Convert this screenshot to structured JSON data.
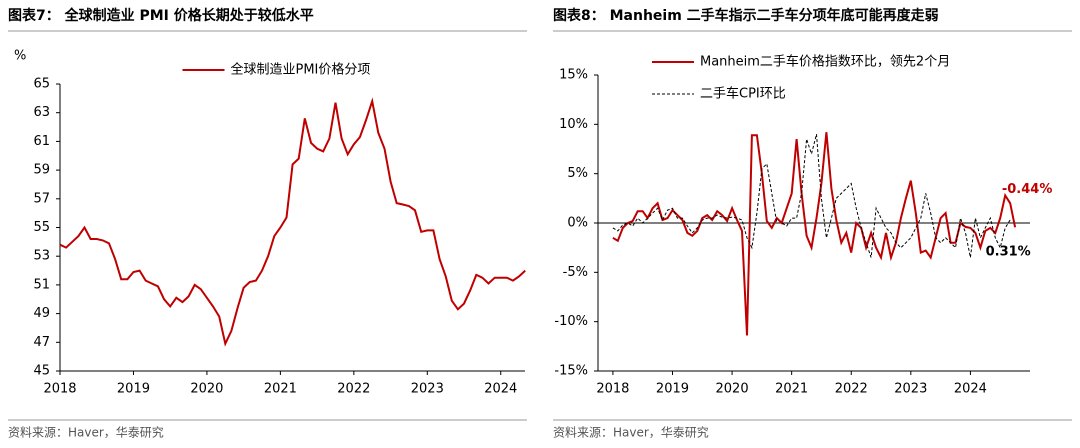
{
  "chart_data": [
    {
      "type": "line",
      "title": "图表7：  全球制造业 PMI 价格长期处于较低水平",
      "y_unit": "%",
      "source": "资料来源：Haver，华泰研究",
      "legend": "top-center",
      "x": [
        2018,
        2018.083,
        2018.167,
        2018.25,
        2018.333,
        2018.417,
        2018.5,
        2018.583,
        2018.667,
        2018.75,
        2018.833,
        2018.917,
        2019,
        2019.083,
        2019.167,
        2019.25,
        2019.333,
        2019.417,
        2019.5,
        2019.583,
        2019.667,
        2019.75,
        2019.833,
        2019.917,
        2020,
        2020.083,
        2020.167,
        2020.25,
        2020.333,
        2020.417,
        2020.5,
        2020.583,
        2020.667,
        2020.75,
        2020.833,
        2020.917,
        2021,
        2021.083,
        2021.167,
        2021.25,
        2021.333,
        2021.417,
        2021.5,
        2021.583,
        2021.667,
        2021.75,
        2021.833,
        2021.917,
        2022,
        2022.083,
        2022.167,
        2022.25,
        2022.333,
        2022.417,
        2022.5,
        2022.583,
        2022.667,
        2022.75,
        2022.833,
        2022.917,
        2023,
        2023.083,
        2023.167,
        2023.25,
        2023.333,
        2023.417,
        2023.5,
        2023.583,
        2023.667,
        2023.75,
        2023.833,
        2023.917,
        2024,
        2024.083,
        2024.167,
        2024.25,
        2024.333
      ],
      "series": [
        {
          "name": "全球制造业PMI价格分项",
          "color": "#c00000",
          "dashed": false,
          "values": [
            53.8,
            53.6,
            54.0,
            54.4,
            55.0,
            54.2,
            54.2,
            54.1,
            53.9,
            52.8,
            51.4,
            51.4,
            51.9,
            52.0,
            51.3,
            51.1,
            50.9,
            50.0,
            49.5,
            50.1,
            49.8,
            50.2,
            51.0,
            50.7,
            50.1,
            49.5,
            48.8,
            46.9,
            47.8,
            49.4,
            50.8,
            51.2,
            51.3,
            52.0,
            53.0,
            54.4,
            55.0,
            55.7,
            59.4,
            59.8,
            62.6,
            60.9,
            60.5,
            60.3,
            61.2,
            63.7,
            61.2,
            60.1,
            60.8,
            61.3,
            62.5,
            63.8,
            61.6,
            60.5,
            58.2,
            56.7,
            56.6,
            56.5,
            56.2,
            54.7,
            54.8,
            54.8,
            52.8,
            51.6,
            49.9,
            49.3,
            49.7,
            50.6,
            51.7,
            51.5,
            51.1,
            51.5,
            51.5,
            51.5,
            51.3,
            51.6,
            52.0
          ]
        }
      ],
      "xlim": [
        2018,
        2024.33
      ],
      "xticks": [
        2018,
        2019,
        2020,
        2021,
        2022,
        2023,
        2024
      ],
      "ylim": [
        45,
        65
      ],
      "yticks": [
        45,
        47,
        49,
        51,
        53,
        55,
        57,
        59,
        61,
        63,
        65
      ],
      "grid": false
    },
    {
      "type": "line",
      "title": "图表8：  Manheim 二手车指示二手车分项年底可能再度走弱",
      "source": "资料来源：Haver，华泰研究",
      "legend": "top-left",
      "x": [
        2018,
        2018.083,
        2018.167,
        2018.25,
        2018.333,
        2018.417,
        2018.5,
        2018.583,
        2018.667,
        2018.75,
        2018.833,
        2018.917,
        2019,
        2019.083,
        2019.167,
        2019.25,
        2019.333,
        2019.417,
        2019.5,
        2019.583,
        2019.667,
        2019.75,
        2019.833,
        2019.917,
        2020,
        2020.083,
        2020.167,
        2020.25,
        2020.333,
        2020.417,
        2020.5,
        2020.583,
        2020.667,
        2020.75,
        2020.833,
        2020.917,
        2021,
        2021.083,
        2021.167,
        2021.25,
        2021.333,
        2021.417,
        2021.5,
        2021.583,
        2021.667,
        2021.75,
        2021.833,
        2021.917,
        2022,
        2022.083,
        2022.167,
        2022.25,
        2022.333,
        2022.417,
        2022.5,
        2022.583,
        2022.667,
        2022.75,
        2022.833,
        2022.917,
        2023,
        2023.083,
        2023.167,
        2023.25,
        2023.333,
        2023.417,
        2023.5,
        2023.583,
        2023.667,
        2023.75,
        2023.833,
        2023.917,
        2024,
        2024.083,
        2024.167,
        2024.25,
        2024.333,
        2024.417,
        2024.5,
        2024.583,
        2024.667,
        2024.75
      ],
      "series": [
        {
          "name": "Manheim二手车价格指数环比，领先2个月",
          "color": "#c00000",
          "dashed": false,
          "values": [
            -1.5,
            -1.8,
            -0.5,
            0,
            0.2,
            1.2,
            1.2,
            0.5,
            1.5,
            2.0,
            0.3,
            0.5,
            1.3,
            0.8,
            0.3,
            -1.0,
            -1.3,
            -0.8,
            0.5,
            0.8,
            0.3,
            1.2,
            0.8,
            0.2,
            1.5,
            0.3,
            -0.8,
            -11.4,
            8.9,
            8.9,
            5.0,
            0.2,
            -0.5,
            0.5,
            0.0,
            1.5,
            3.0,
            8.5,
            3.0,
            -1.3,
            -2.5,
            0.5,
            4.0,
            9.2,
            3.5,
            0.3,
            -2.0,
            -1.0,
            -3.0,
            0.0,
            -0.5,
            -2.5,
            -1.0,
            -2.5,
            -3.5,
            -1.0,
            -3.5,
            -2.0,
            0.5,
            2.5,
            4.3,
            1.0,
            -3.0,
            -2.8,
            -3.5,
            -1.5,
            0.5,
            1.0,
            -2.0,
            -2.0,
            0.0,
            -0.4,
            -0.5,
            -1.0,
            -2.5,
            -0.8,
            -0.5,
            -1.0,
            0.5,
            2.8,
            2.0,
            -0.44
          ],
          "value_labels": [
            null,
            null,
            null,
            null,
            null,
            null,
            null,
            null,
            null,
            null,
            null,
            null,
            null,
            null,
            null,
            null,
            null,
            null,
            null,
            null,
            null,
            null,
            null,
            null,
            null,
            null,
            null,
            null,
            null,
            null,
            null,
            null,
            null,
            null,
            null,
            null,
            null,
            null,
            null,
            null,
            null,
            null,
            null,
            null,
            null,
            null,
            null,
            null,
            null,
            null,
            null,
            null,
            null,
            null,
            null,
            null,
            null,
            null,
            null,
            null,
            null,
            null,
            null,
            null,
            null,
            null,
            null,
            null,
            null,
            null,
            null,
            null,
            null,
            null,
            null,
            null,
            null,
            null,
            null,
            null,
            null,
            "-0.44%"
          ]
        },
        {
          "name": "二手车CPI环比",
          "color": "#000000",
          "dashed": true,
          "values": [
            -0.5,
            -0.8,
            -0.2,
            0.0,
            -0.3,
            0.5,
            0.0,
            0.5,
            1.0,
            1.5,
            0.3,
            1.3,
            1.5,
            0.5,
            0.5,
            -0.3,
            -1.0,
            -0.5,
            0.3,
            0.5,
            0.5,
            0.8,
            0.6,
            0.5,
            0.6,
            0.5,
            0.3,
            -1.5,
            -2.5,
            1.0,
            5.5,
            6.0,
            3.0,
            0.0,
            0.0,
            -0.3,
            0.5,
            0.5,
            3.0,
            8.5,
            7.0,
            9.0,
            2.5,
            -1.5,
            0.5,
            2.5,
            3.0,
            3.5,
            4.0,
            1.5,
            -0.5,
            -2.0,
            -3.5,
            1.5,
            0.5,
            -0.5,
            -1.0,
            -2.0,
            -2.5,
            -2.0,
            -1.5,
            -0.5,
            0.5,
            3.0,
            1.0,
            -1.5,
            -2.0,
            -1.5,
            -2.0,
            -2.5,
            0.5,
            -1.0,
            -3.5,
            0.5,
            -1.5,
            -0.5,
            0.5,
            -1.5,
            -2.5,
            -0.5,
            0.31,
            null
          ],
          "value_labels": [
            null,
            null,
            null,
            null,
            null,
            null,
            null,
            null,
            null,
            null,
            null,
            null,
            null,
            null,
            null,
            null,
            null,
            null,
            null,
            null,
            null,
            null,
            null,
            null,
            null,
            null,
            null,
            null,
            null,
            null,
            null,
            null,
            null,
            null,
            null,
            null,
            null,
            null,
            null,
            null,
            null,
            null,
            null,
            null,
            null,
            null,
            null,
            null,
            null,
            null,
            null,
            null,
            null,
            null,
            null,
            null,
            null,
            null,
            null,
            null,
            null,
            null,
            null,
            null,
            null,
            null,
            null,
            null,
            null,
            null,
            null,
            null,
            null,
            null,
            null,
            null,
            null,
            null,
            null,
            null,
            "0.31%",
            null
          ]
        }
      ],
      "xlim": [
        2017.75,
        2025
      ],
      "xticks": [
        2018,
        2019,
        2020,
        2021,
        2022,
        2023,
        2024
      ],
      "ylim": [
        -15,
        15
      ],
      "yticks": [
        {
          "value": -15,
          "label": "-15%"
        },
        {
          "value": -10,
          "label": "-10%"
        },
        {
          "value": -5,
          "label": "-5%"
        },
        {
          "value": 0,
          "label": "0%"
        },
        {
          "value": 5,
          "label": "5%"
        },
        {
          "value": 10,
          "label": "10%"
        },
        {
          "value": 15,
          "label": "15%"
        }
      ],
      "grid": false
    }
  ]
}
